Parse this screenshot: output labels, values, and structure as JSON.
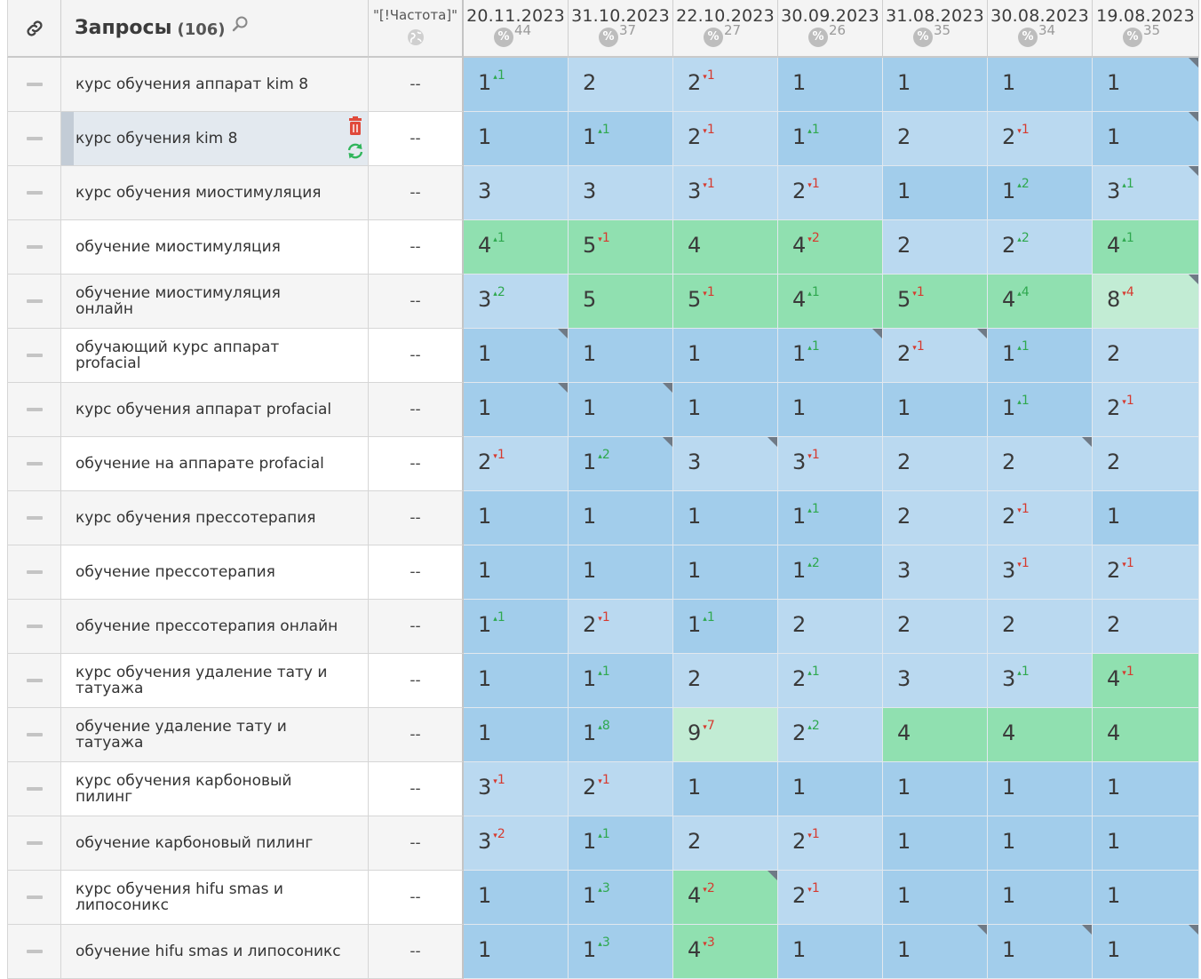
{
  "header": {
    "link_icon": "link-icon",
    "title": "Запросы",
    "count": "(106)",
    "search_icon": "search-icon",
    "freq_label": "\"[!Частота]\"",
    "globe_icon": "globe-icon",
    "percent_symbol": "%",
    "dates": [
      {
        "date": "20.11.2023",
        "visibility": "44"
      },
      {
        "date": "31.10.2023",
        "visibility": "37"
      },
      {
        "date": "22.10.2023",
        "visibility": "27"
      },
      {
        "date": "30.09.2023",
        "visibility": "26"
      },
      {
        "date": "31.08.2023",
        "visibility": "35"
      },
      {
        "date": "30.08.2023",
        "visibility": "34"
      },
      {
        "date": "19.08.2023",
        "visibility": "35"
      }
    ]
  },
  "colors": {
    "pos1": "#a2cdeb",
    "pos2_3": "#bad9f0",
    "pos4_5": "#90e0b0",
    "pos6_10": "#c2ecd4",
    "up": "#2fa84f",
    "down": "#d63a2f"
  },
  "row_tools": {
    "delete_icon": "trash-icon",
    "refresh_icon": "refresh-icon"
  },
  "rows": [
    {
      "query": "курс обучения аппарат kim 8",
      "freq": "--",
      "cells": [
        {
          "pos": "1",
          "chg": "1",
          "dir": "up"
        },
        {
          "pos": "2"
        },
        {
          "pos": "2",
          "chg": "1",
          "dir": "down"
        },
        {
          "pos": "1"
        },
        {
          "pos": "1"
        },
        {
          "pos": "1"
        },
        {
          "pos": "1",
          "flag": true
        }
      ]
    },
    {
      "query": "курс обучения kim 8",
      "freq": "--",
      "selected": true,
      "cells": [
        {
          "pos": "1"
        },
        {
          "pos": "1",
          "chg": "1",
          "dir": "up"
        },
        {
          "pos": "2",
          "chg": "1",
          "dir": "down"
        },
        {
          "pos": "1",
          "chg": "1",
          "dir": "up"
        },
        {
          "pos": "2"
        },
        {
          "pos": "2",
          "chg": "1",
          "dir": "down"
        },
        {
          "pos": "1",
          "flag": true
        }
      ]
    },
    {
      "query": "курс обучения миостимуляция",
      "freq": "--",
      "cells": [
        {
          "pos": "3"
        },
        {
          "pos": "3"
        },
        {
          "pos": "3",
          "chg": "1",
          "dir": "down"
        },
        {
          "pos": "2",
          "chg": "1",
          "dir": "down"
        },
        {
          "pos": "1"
        },
        {
          "pos": "1",
          "chg": "2",
          "dir": "up"
        },
        {
          "pos": "3",
          "chg": "1",
          "dir": "up",
          "flag": true
        }
      ]
    },
    {
      "query": "обучение миостимуляция",
      "freq": "--",
      "cells": [
        {
          "pos": "4",
          "chg": "1",
          "dir": "up"
        },
        {
          "pos": "5",
          "chg": "1",
          "dir": "down"
        },
        {
          "pos": "4"
        },
        {
          "pos": "4",
          "chg": "2",
          "dir": "down"
        },
        {
          "pos": "2"
        },
        {
          "pos": "2",
          "chg": "2",
          "dir": "up"
        },
        {
          "pos": "4",
          "chg": "1",
          "dir": "up"
        }
      ]
    },
    {
      "query": "обучение миостимуляция онлайн",
      "freq": "--",
      "cells": [
        {
          "pos": "3",
          "chg": "2",
          "dir": "up"
        },
        {
          "pos": "5"
        },
        {
          "pos": "5",
          "chg": "1",
          "dir": "down"
        },
        {
          "pos": "4",
          "chg": "1",
          "dir": "up"
        },
        {
          "pos": "5",
          "chg": "1",
          "dir": "down"
        },
        {
          "pos": "4",
          "chg": "4",
          "dir": "up"
        },
        {
          "pos": "8",
          "chg": "4",
          "dir": "down",
          "flag": true
        }
      ]
    },
    {
      "query": "обучающий курс аппарат profacial",
      "freq": "--",
      "cells": [
        {
          "pos": "1",
          "flag": true
        },
        {
          "pos": "1"
        },
        {
          "pos": "1"
        },
        {
          "pos": "1",
          "chg": "1",
          "dir": "up",
          "flag": true
        },
        {
          "pos": "2",
          "chg": "1",
          "dir": "down",
          "flag": true
        },
        {
          "pos": "1",
          "chg": "1",
          "dir": "up"
        },
        {
          "pos": "2"
        }
      ]
    },
    {
      "query": "курс обучения аппарат profacial",
      "freq": "--",
      "cells": [
        {
          "pos": "1",
          "flag": true
        },
        {
          "pos": "1",
          "flag": true
        },
        {
          "pos": "1"
        },
        {
          "pos": "1"
        },
        {
          "pos": "1"
        },
        {
          "pos": "1",
          "chg": "1",
          "dir": "up"
        },
        {
          "pos": "2",
          "chg": "1",
          "dir": "down"
        }
      ]
    },
    {
      "query": "обучение на аппарате profacial",
      "freq": "--",
      "cells": [
        {
          "pos": "2",
          "chg": "1",
          "dir": "down"
        },
        {
          "pos": "1",
          "chg": "2",
          "dir": "up",
          "flag": true
        },
        {
          "pos": "3",
          "flag": true
        },
        {
          "pos": "3",
          "chg": "1",
          "dir": "down"
        },
        {
          "pos": "2"
        },
        {
          "pos": "2",
          "flag": true
        },
        {
          "pos": "2"
        }
      ]
    },
    {
      "query": "курс обучения прессотерапия",
      "freq": "--",
      "cells": [
        {
          "pos": "1"
        },
        {
          "pos": "1"
        },
        {
          "pos": "1"
        },
        {
          "pos": "1",
          "chg": "1",
          "dir": "up"
        },
        {
          "pos": "2"
        },
        {
          "pos": "2",
          "chg": "1",
          "dir": "down"
        },
        {
          "pos": "1"
        }
      ]
    },
    {
      "query": "обучение прессотерапия",
      "freq": "--",
      "cells": [
        {
          "pos": "1"
        },
        {
          "pos": "1"
        },
        {
          "pos": "1"
        },
        {
          "pos": "1",
          "chg": "2",
          "dir": "up"
        },
        {
          "pos": "3"
        },
        {
          "pos": "3",
          "chg": "1",
          "dir": "down"
        },
        {
          "pos": "2",
          "chg": "1",
          "dir": "down"
        }
      ]
    },
    {
      "query": "обучение прессотерапия онлайн",
      "freq": "--",
      "cells": [
        {
          "pos": "1",
          "chg": "1",
          "dir": "up"
        },
        {
          "pos": "2",
          "chg": "1",
          "dir": "down"
        },
        {
          "pos": "1",
          "chg": "1",
          "dir": "up"
        },
        {
          "pos": "2"
        },
        {
          "pos": "2"
        },
        {
          "pos": "2"
        },
        {
          "pos": "2"
        }
      ]
    },
    {
      "query": "курс обучения удаление тату и татуажа",
      "freq": "--",
      "cells": [
        {
          "pos": "1"
        },
        {
          "pos": "1",
          "chg": "1",
          "dir": "up"
        },
        {
          "pos": "2"
        },
        {
          "pos": "2",
          "chg": "1",
          "dir": "up"
        },
        {
          "pos": "3"
        },
        {
          "pos": "3",
          "chg": "1",
          "dir": "up"
        },
        {
          "pos": "4",
          "chg": "1",
          "dir": "down"
        }
      ]
    },
    {
      "query": "обучение удаление тату и татуажа",
      "freq": "--",
      "cells": [
        {
          "pos": "1"
        },
        {
          "pos": "1",
          "chg": "8",
          "dir": "up"
        },
        {
          "pos": "9",
          "chg": "7",
          "dir": "down"
        },
        {
          "pos": "2",
          "chg": "2",
          "dir": "up"
        },
        {
          "pos": "4"
        },
        {
          "pos": "4"
        },
        {
          "pos": "4"
        }
      ]
    },
    {
      "query": "курс обучения карбоновый пилинг",
      "freq": "--",
      "cells": [
        {
          "pos": "3",
          "chg": "1",
          "dir": "down"
        },
        {
          "pos": "2",
          "chg": "1",
          "dir": "down"
        },
        {
          "pos": "1"
        },
        {
          "pos": "1"
        },
        {
          "pos": "1"
        },
        {
          "pos": "1"
        },
        {
          "pos": "1"
        }
      ]
    },
    {
      "query": "обучение карбоновый пилинг",
      "freq": "--",
      "cells": [
        {
          "pos": "3",
          "chg": "2",
          "dir": "down"
        },
        {
          "pos": "1",
          "chg": "1",
          "dir": "up"
        },
        {
          "pos": "2"
        },
        {
          "pos": "2",
          "chg": "1",
          "dir": "down"
        },
        {
          "pos": "1"
        },
        {
          "pos": "1"
        },
        {
          "pos": "1"
        }
      ]
    },
    {
      "query": "курс обучения hifu smas и липосоникс",
      "freq": "--",
      "cells": [
        {
          "pos": "1"
        },
        {
          "pos": "1",
          "chg": "3",
          "dir": "up"
        },
        {
          "pos": "4",
          "chg": "2",
          "dir": "down",
          "flag": true
        },
        {
          "pos": "2",
          "chg": "1",
          "dir": "down"
        },
        {
          "pos": "1"
        },
        {
          "pos": "1"
        },
        {
          "pos": "1"
        }
      ]
    },
    {
      "query": "обучение hifu smas и липосоникс",
      "freq": "--",
      "cells": [
        {
          "pos": "1"
        },
        {
          "pos": "1",
          "chg": "3",
          "dir": "up"
        },
        {
          "pos": "4",
          "chg": "3",
          "dir": "down"
        },
        {
          "pos": "1"
        },
        {
          "pos": "1",
          "flag": true
        },
        {
          "pos": "1",
          "flag": true
        },
        {
          "pos": "1",
          "flag": true
        }
      ]
    }
  ]
}
